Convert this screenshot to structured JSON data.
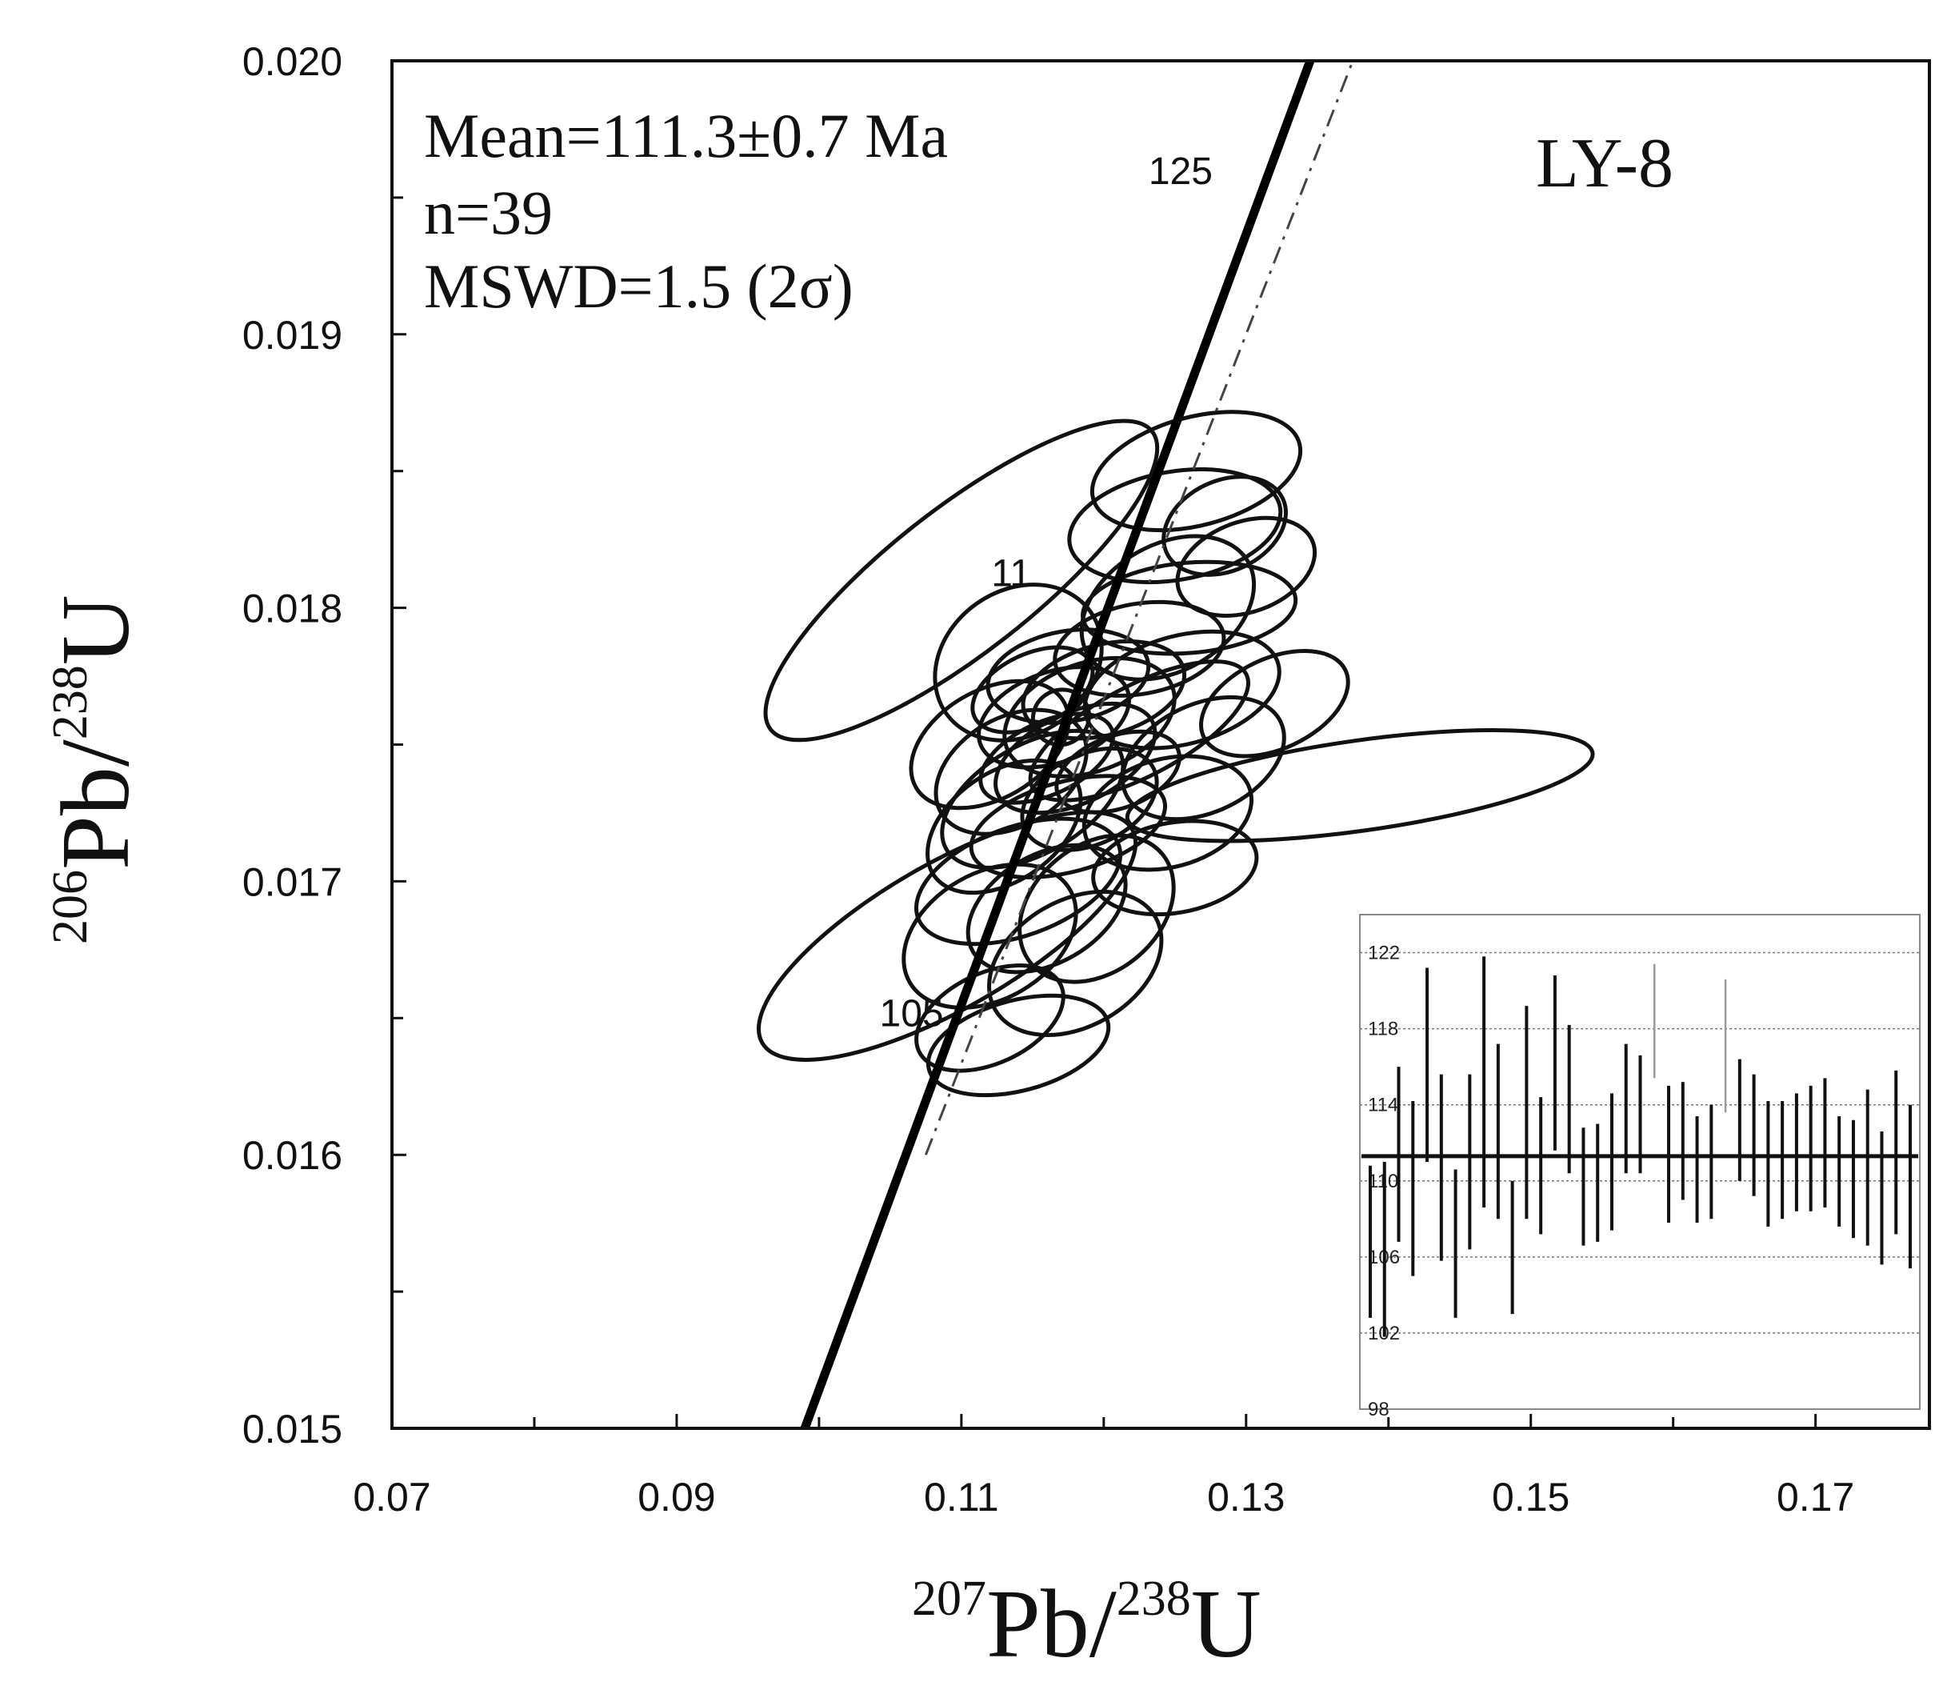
{
  "chart_data": {
    "type": "concordia",
    "sample": "LY-8",
    "annotation": {
      "mean": "Mean=111.3±0.7 Ma",
      "n": "n=39",
      "mswd": "MSWD=1.5 (2σ)"
    },
    "xlabel": {
      "iso": "207",
      "elem": "Pb/",
      "iso2": "238",
      "elem2": "U"
    },
    "ylabel": {
      "iso": "206",
      "elem": "Pb/",
      "iso2": "238",
      "elem2": "U"
    },
    "xlim": [
      0.07,
      0.178
    ],
    "ylim": [
      0.015,
      0.02
    ],
    "x_ticks": [
      "0.07",
      "0.09",
      "0.11",
      "0.13",
      "0.15",
      "0.17"
    ],
    "y_ticks": [
      "0.015",
      "0.016",
      "0.017",
      "0.018",
      "0.019",
      "0.020"
    ],
    "concordia_age_labels": [
      {
        "label": "125",
        "x": 0.1254,
        "y": 0.01955
      },
      {
        "label": "11",
        "x": 0.1135,
        "y": 0.01808
      },
      {
        "label": "105",
        "x": 0.1065,
        "y": 0.01647
      }
    ],
    "ellipses": [
      {
        "cx": 0.1225,
        "cy": 0.01755,
        "rx": 0.0085,
        "ry": 0.0005,
        "angle": 28
      },
      {
        "cx": 0.114,
        "cy": 0.0178,
        "rx": 0.0062,
        "ry": 0.0008,
        "angle": 35
      },
      {
        "cx": 0.1165,
        "cy": 0.0176,
        "rx": 0.0055,
        "ry": 0.0005,
        "angle": 20
      },
      {
        "cx": 0.112,
        "cy": 0.0175,
        "rx": 0.006,
        "ry": 0.0006,
        "angle": 30
      },
      {
        "cx": 0.118,
        "cy": 0.01745,
        "rx": 0.006,
        "ry": 0.0005,
        "angle": 25
      },
      {
        "cx": 0.12,
        "cy": 0.0177,
        "rx": 0.0058,
        "ry": 0.0005,
        "angle": 15
      },
      {
        "cx": 0.115,
        "cy": 0.0173,
        "rx": 0.007,
        "ry": 0.0006,
        "angle": 30
      },
      {
        "cx": 0.119,
        "cy": 0.0173,
        "rx": 0.005,
        "ry": 0.0005,
        "angle": 25
      },
      {
        "cx": 0.1135,
        "cy": 0.0174,
        "rx": 0.0057,
        "ry": 0.0006,
        "angle": 30
      },
      {
        "cx": 0.1175,
        "cy": 0.01775,
        "rx": 0.0057,
        "ry": 0.0005,
        "angle": 10
      },
      {
        "cx": 0.113,
        "cy": 0.0172,
        "rx": 0.006,
        "ry": 0.0006,
        "angle": 35
      },
      {
        "cx": 0.119,
        "cy": 0.0176,
        "rx": 0.0062,
        "ry": 0.0006,
        "angle": 20
      },
      {
        "cx": 0.116,
        "cy": 0.01745,
        "rx": 0.005,
        "ry": 0.0004,
        "angle": 25
      },
      {
        "cx": 0.121,
        "cy": 0.0174,
        "rx": 0.0045,
        "ry": 0.0004,
        "angle": 20
      },
      {
        "cx": 0.115,
        "cy": 0.0177,
        "rx": 0.0045,
        "ry": 0.0004,
        "angle": 25
      },
      {
        "cx": 0.1175,
        "cy": 0.0172,
        "rx": 0.007,
        "ry": 0.0005,
        "angle": 15
      },
      {
        "cx": 0.114,
        "cy": 0.017,
        "rx": 0.0075,
        "ry": 0.0006,
        "angle": 20
      },
      {
        "cx": 0.1255,
        "cy": 0.0177,
        "rx": 0.007,
        "ry": 0.0006,
        "angle": 15
      },
      {
        "cx": 0.125,
        "cy": 0.01705,
        "rx": 0.0058,
        "ry": 0.0005,
        "angle": 10
      },
      {
        "cx": 0.1245,
        "cy": 0.01725,
        "rx": 0.006,
        "ry": 0.0006,
        "angle": 15
      },
      {
        "cx": 0.127,
        "cy": 0.01745,
        "rx": 0.006,
        "ry": 0.0006,
        "angle": 25
      },
      {
        "cx": 0.1225,
        "cy": 0.01785,
        "rx": 0.006,
        "ry": 0.0005,
        "angle": 10
      },
      {
        "cx": 0.116,
        "cy": 0.0169,
        "rx": 0.006,
        "ry": 0.0006,
        "angle": 30
      },
      {
        "cx": 0.112,
        "cy": 0.0168,
        "rx": 0.0065,
        "ry": 0.0007,
        "angle": 30
      },
      {
        "cx": 0.118,
        "cy": 0.0167,
        "rx": 0.0065,
        "ry": 0.0007,
        "angle": 30
      },
      {
        "cx": 0.112,
        "cy": 0.0165,
        "rx": 0.0055,
        "ry": 0.0005,
        "angle": 25
      },
      {
        "cx": 0.114,
        "cy": 0.0164,
        "rx": 0.0065,
        "ry": 0.0005,
        "angle": 15
      },
      {
        "cx": 0.1195,
        "cy": 0.0169,
        "rx": 0.006,
        "ry": 0.0007,
        "angle": 40
      },
      {
        "cx": 0.126,
        "cy": 0.018,
        "rx": 0.0075,
        "ry": 0.0005,
        "angle": 5
      },
      {
        "cx": 0.1245,
        "cy": 0.018,
        "rx": 0.0065,
        "ry": 0.0007,
        "angle": 30
      },
      {
        "cx": 0.125,
        "cy": 0.0183,
        "rx": 0.0075,
        "ry": 0.0006,
        "angle": 10
      },
      {
        "cx": 0.13,
        "cy": 0.01815,
        "rx": 0.005,
        "ry": 0.0005,
        "angle": 20
      },
      {
        "cx": 0.1265,
        "cy": 0.0185,
        "rx": 0.0075,
        "ry": 0.0006,
        "angle": 15
      },
      {
        "cx": 0.1285,
        "cy": 0.0183,
        "rx": 0.0045,
        "ry": 0.0005,
        "angle": 25
      },
      {
        "cx": 0.132,
        "cy": 0.01765,
        "rx": 0.0055,
        "ry": 0.0005,
        "angle": 25
      },
      {
        "cx": 0.117,
        "cy": 0.0176,
        "rx": 0.002,
        "ry": 0.0003,
        "angle": 35
      },
      {
        "cx": 0.138,
        "cy": 0.01735,
        "rx": 0.0165,
        "ry": 0.0005,
        "angle": 8
      },
      {
        "cx": 0.11,
        "cy": 0.0181,
        "rx": 0.017,
        "ry": 0.0008,
        "angle": 38
      },
      {
        "cx": 0.109,
        "cy": 0.0168,
        "rx": 0.015,
        "ry": 0.0008,
        "angle": 30
      }
    ],
    "inset": {
      "type": "weighted_mean_bars",
      "ylim": [
        98,
        124
      ],
      "y_ticks": [
        "98",
        "102",
        "106",
        "110",
        "114",
        "118",
        "122"
      ],
      "mean": 111.3,
      "bars": [
        [
          102.8,
          110.8
        ],
        [
          101.8,
          111.0
        ],
        [
          106.8,
          116.0
        ],
        [
          105.0,
          114.2
        ],
        [
          111.0,
          121.2
        ],
        [
          105.8,
          115.6
        ],
        [
          102.8,
          110.6
        ],
        [
          106.4,
          115.6
        ],
        [
          108.6,
          121.8
        ],
        [
          108.0,
          117.2
        ],
        [
          103.0,
          110.0
        ],
        [
          108.0,
          119.2
        ],
        [
          107.2,
          114.4
        ],
        [
          111.6,
          120.8
        ],
        [
          110.4,
          118.2
        ],
        [
          106.6,
          112.8
        ],
        [
          106.8,
          113.0
        ],
        [
          107.4,
          114.6
        ],
        [
          110.4,
          117.2
        ],
        [
          110.4,
          116.6
        ],
        [
          115.4,
          121.4
        ],
        [
          107.8,
          115.0
        ],
        [
          109.0,
          115.2
        ],
        [
          107.8,
          113.4
        ],
        [
          108.0,
          114.0
        ],
        [
          113.6,
          120.6
        ],
        [
          110.0,
          116.4
        ],
        [
          109.2,
          115.6
        ],
        [
          107.6,
          114.2
        ],
        [
          108.0,
          114.2
        ],
        [
          108.4,
          114.6
        ],
        [
          108.4,
          115.0
        ],
        [
          108.6,
          115.4
        ],
        [
          107.6,
          113.4
        ],
        [
          107.0,
          113.2
        ],
        [
          106.6,
          114.8
        ],
        [
          105.6,
          112.6
        ],
        [
          107.2,
          115.8
        ],
        [
          105.4,
          114.0
        ]
      ]
    }
  }
}
